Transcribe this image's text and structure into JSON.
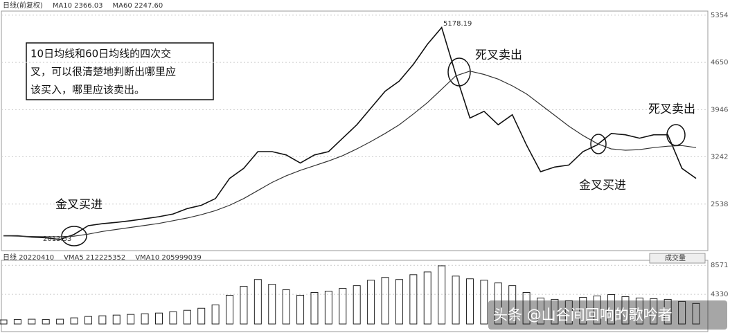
{
  "chart_data": [
    {
      "type": "line",
      "header": [
        "日线(前复权)",
        "MA10 2366.03",
        "MA60 2247.60"
      ],
      "annotations": [
        "10日均线和60日均线的四次交",
        "叉，可以很清楚地判断出哪里应",
        "该买入，哪里应该卖出。",
        "金叉买进",
        "死叉卖出",
        "金叉买进",
        "死叉卖出",
        "5178.19",
        "2013.53"
      ],
      "series": [
        {
          "name": "MA10",
          "color": "#111111",
          "values": [
            2065,
            2065,
            2045,
            2035,
            2010,
            2085,
            2215,
            2245,
            2265,
            2290,
            2320,
            2350,
            2390,
            2470,
            2520,
            2620,
            2920,
            3070,
            3320,
            3320,
            3270,
            3150,
            3270,
            3320,
            3520,
            3720,
            3970,
            4220,
            4370,
            4620,
            4920,
            5170,
            4470,
            3820,
            3920,
            3720,
            3870,
            3420,
            3020,
            3090,
            3120,
            3320,
            3420,
            3590,
            3570,
            3520,
            3570,
            3570,
            3070,
            2920
          ]
        },
        {
          "name": "MA60",
          "color": "#333333",
          "values": [
            2065,
            2060,
            2055,
            2050,
            2050,
            2060,
            2090,
            2130,
            2160,
            2190,
            2220,
            2250,
            2290,
            2330,
            2380,
            2440,
            2520,
            2620,
            2740,
            2860,
            2960,
            3040,
            3110,
            3180,
            3260,
            3360,
            3470,
            3590,
            3720,
            3880,
            4050,
            4250,
            4450,
            4520,
            4470,
            4400,
            4300,
            4180,
            4020,
            3860,
            3700,
            3560,
            3440,
            3360,
            3340,
            3350,
            3380,
            3400,
            3410,
            3380
          ]
        }
      ],
      "ylim": [
        1844,
        5394
      ],
      "yticks": [
        2538,
        3242,
        3946,
        4650,
        5354
      ],
      "grid": true
    },
    {
      "type": "bar",
      "header": [
        "日线 20220410",
        "VMA5 212225352",
        "VMA10 205999039"
      ],
      "selector": "成交量",
      "values": [
        600,
        650,
        700,
        650,
        700,
        900,
        1100,
        1200,
        1300,
        1400,
        1500,
        1600,
        1800,
        2000,
        2300,
        2800,
        4200,
        5500,
        6500,
        5800,
        5000,
        4200,
        4600,
        4800,
        5200,
        5600,
        6400,
        6800,
        6500,
        7200,
        7600,
        8500,
        7000,
        6600,
        6400,
        6000,
        5600,
        4600,
        3800,
        3600,
        3400,
        3900,
        4100,
        4300,
        4000,
        3800,
        3700,
        3600,
        3300,
        3000
      ],
      "color": "#222222",
      "ylim": [
        0,
        9000
      ],
      "yticks": [
        4330,
        8571
      ],
      "grid": true
    },
    {
      "watermark": "头条 @山谷间回响的歌吟者"
    }
  ]
}
